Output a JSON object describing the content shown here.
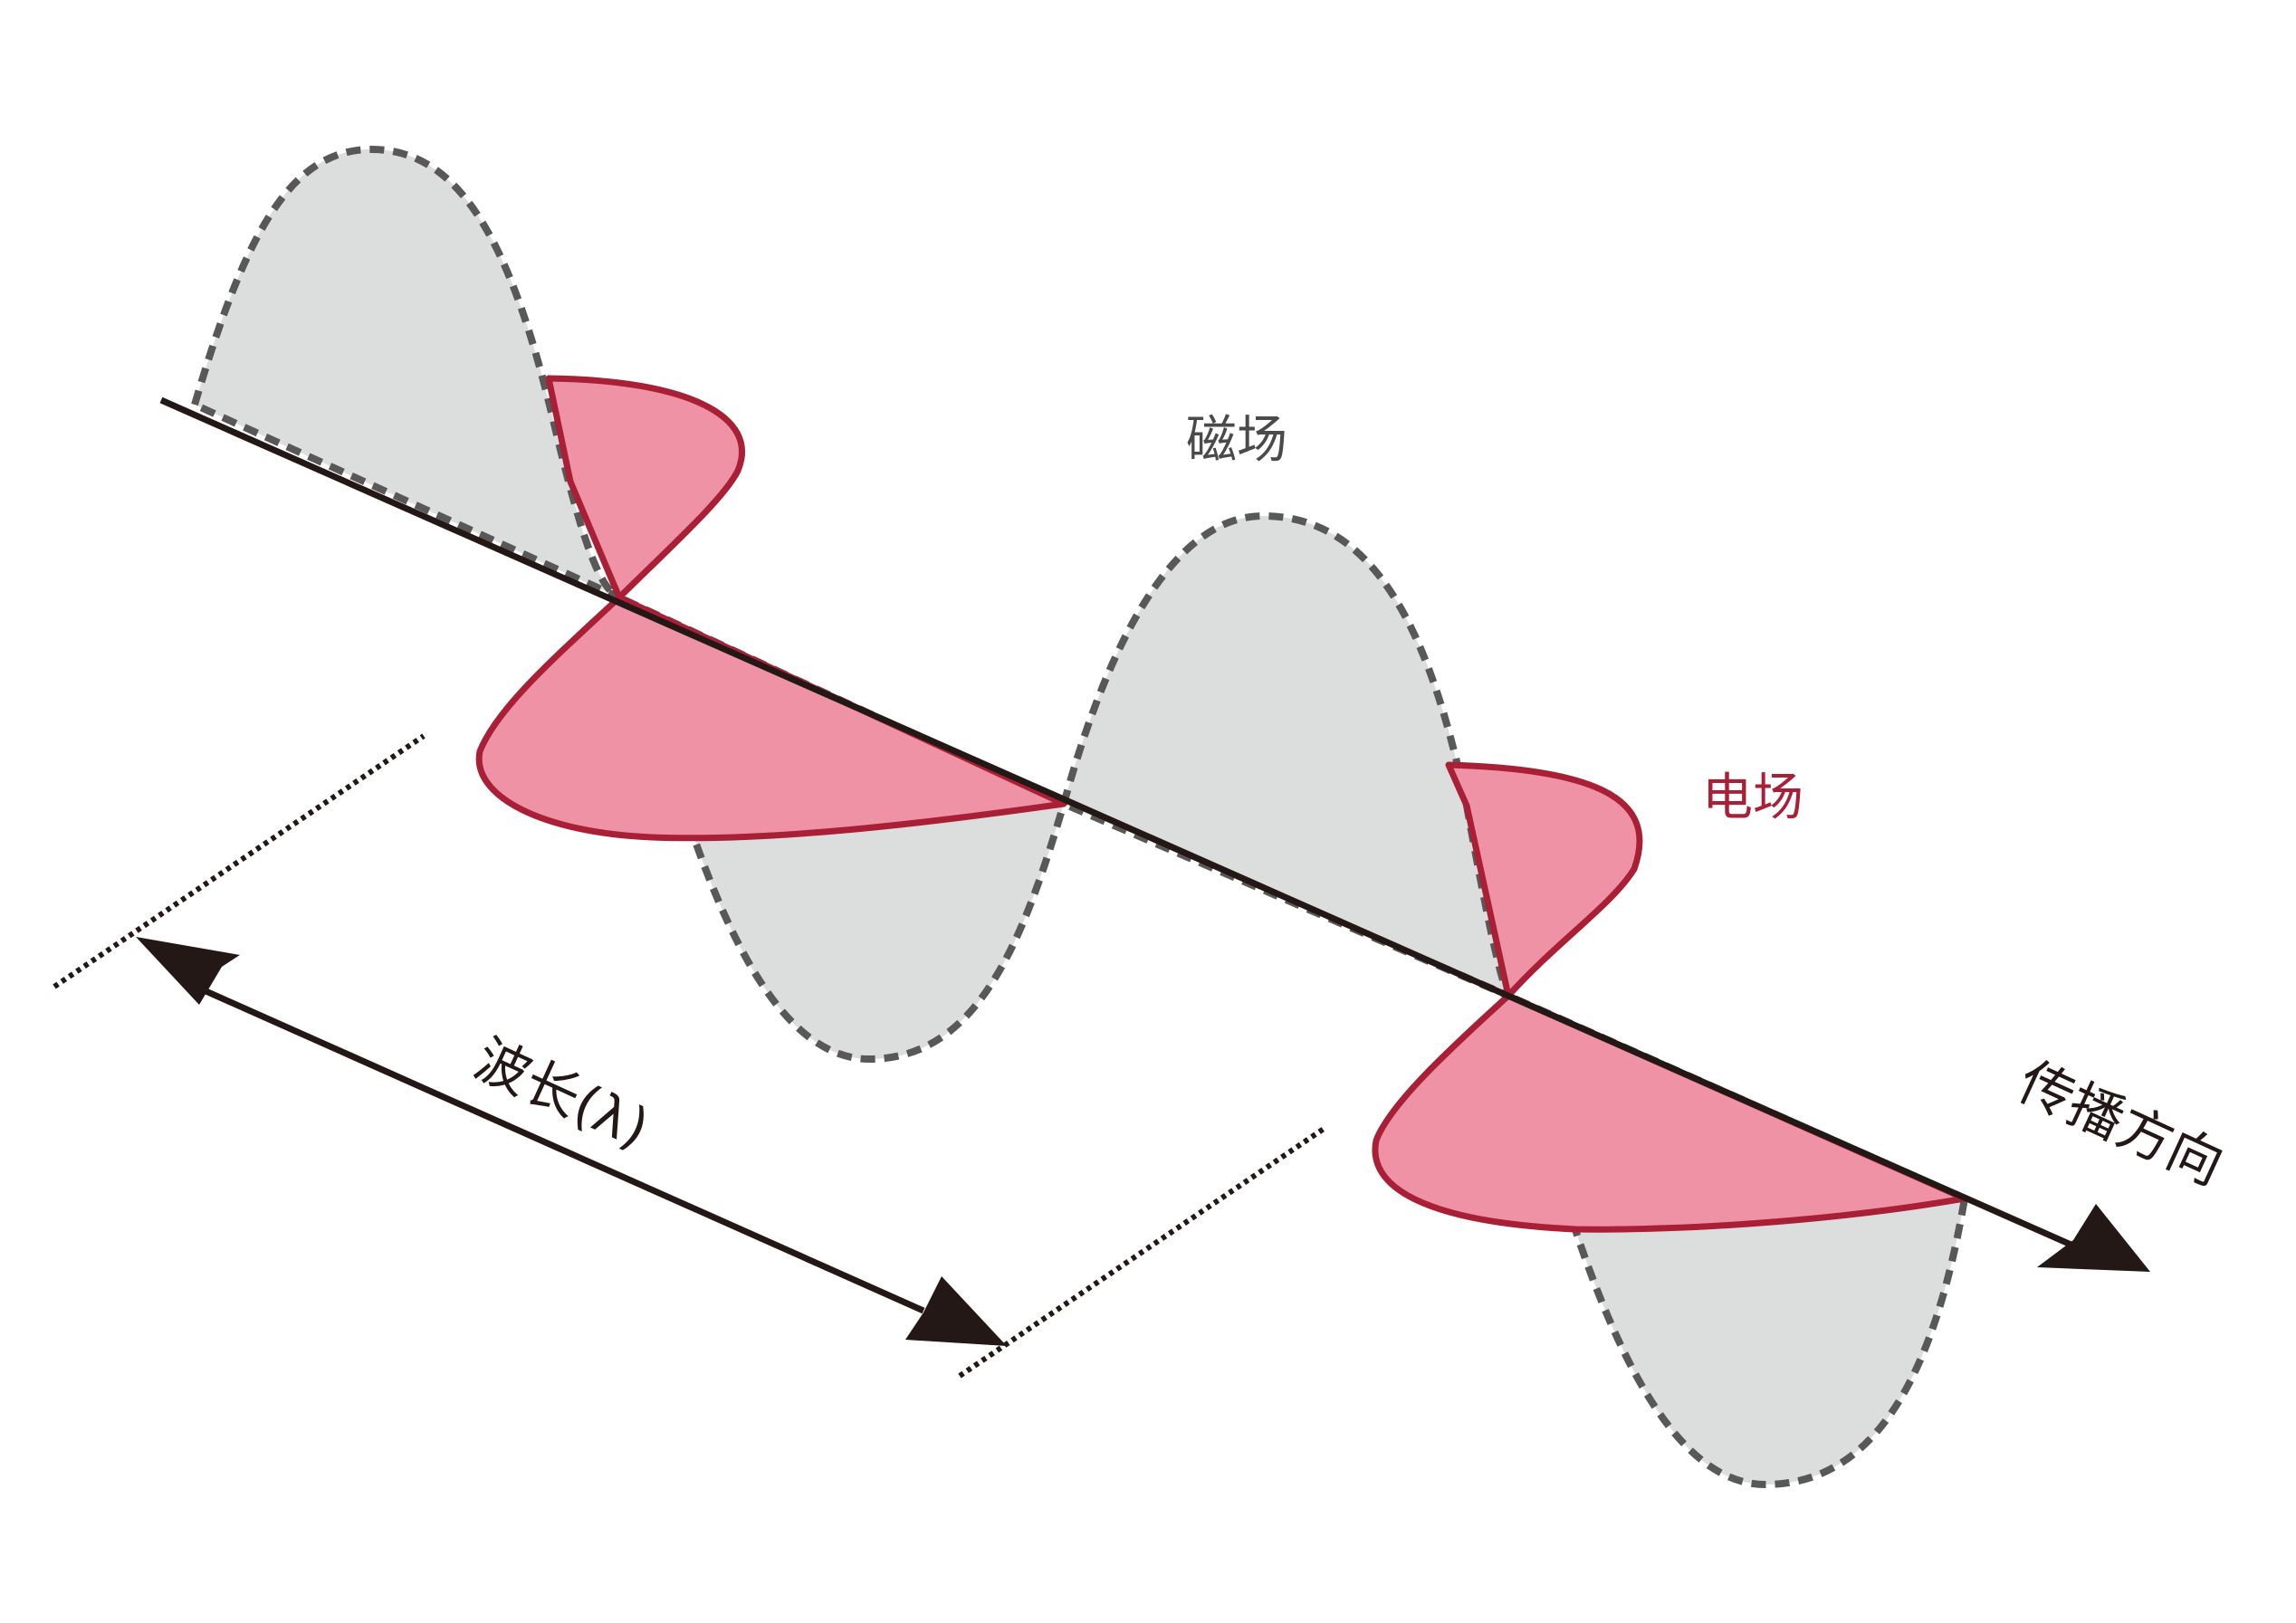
{
  "labels": {
    "magnetic_field": "磁场",
    "electric_field": "电场",
    "wavelength": "波长(λ)",
    "propagation_direction": "传播方向"
  },
  "colors": {
    "magnetic_fill": "#dcdddd",
    "magnetic_stroke": "#595757",
    "electric_fill": "#f092a6",
    "electric_stroke": "#a81f36",
    "axis": "#231815",
    "background": "#ffffff"
  }
}
